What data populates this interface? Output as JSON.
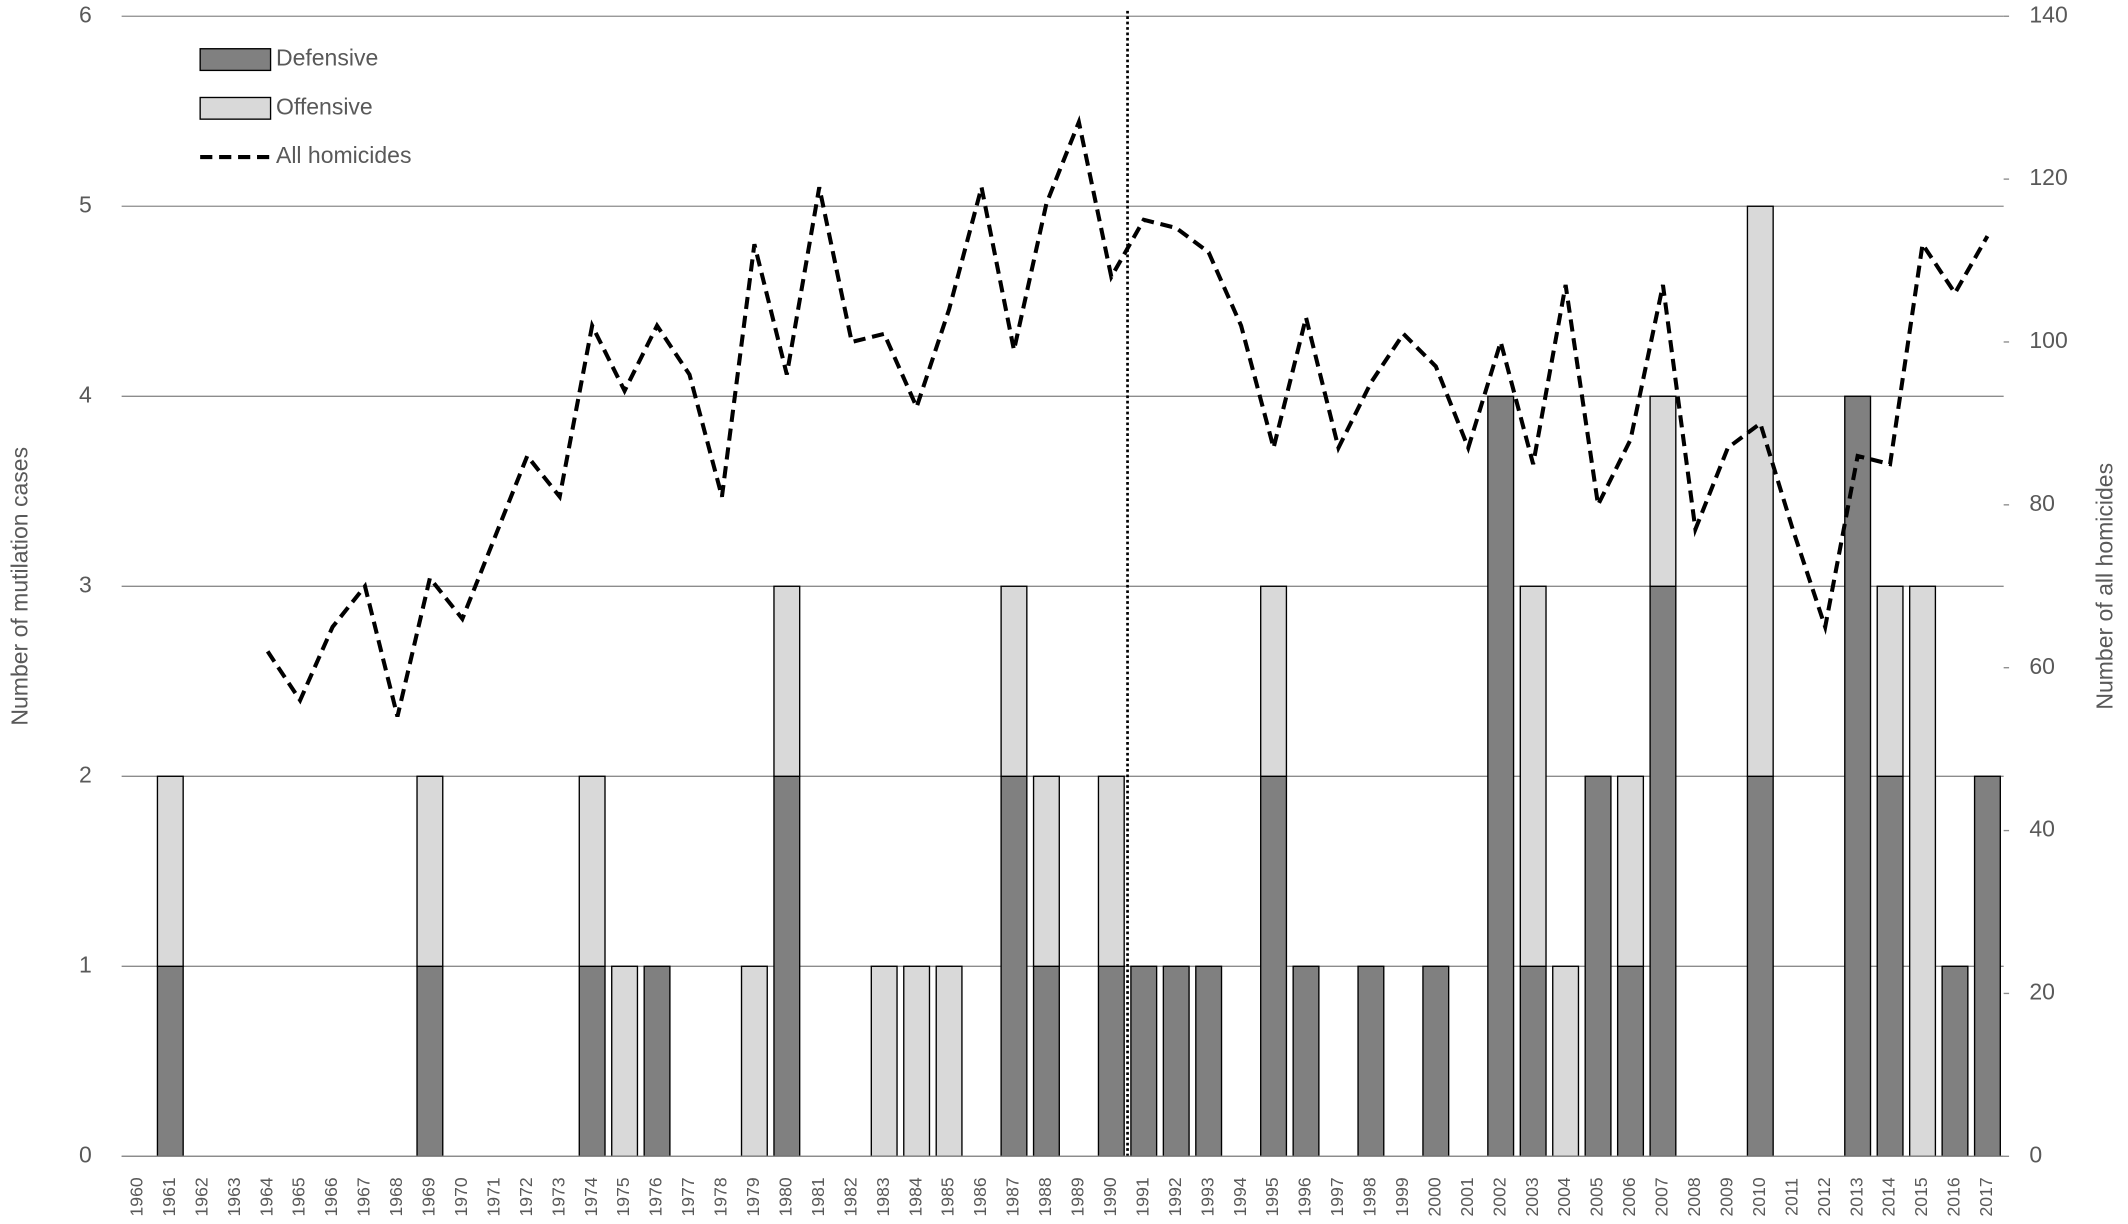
{
  "chart_data": {
    "type": "bar",
    "categories": [
      "1960",
      "1961",
      "1962",
      "1963",
      "1964",
      "1965",
      "1966",
      "1967",
      "1968",
      "1969",
      "1970",
      "1971",
      "1972",
      "1973",
      "1974",
      "1975",
      "1976",
      "1977",
      "1978",
      "1979",
      "1980",
      "1981",
      "1982",
      "1983",
      "1984",
      "1985",
      "1986",
      "1987",
      "1988",
      "1989",
      "1990",
      "1991",
      "1992",
      "1993",
      "1994",
      "1995",
      "1996",
      "1997",
      "1998",
      "1999",
      "2000",
      "2001",
      "2002",
      "2003",
      "2004",
      "2005",
      "2006",
      "2007",
      "2008",
      "2009",
      "2010",
      "2011",
      "2012",
      "2013",
      "2014",
      "2015",
      "2016",
      "2017"
    ],
    "series": [
      {
        "name": "Defensive",
        "type": "bar",
        "color": "#808080",
        "values": [
          0,
          1,
          0,
          0,
          0,
          0,
          0,
          0,
          0,
          1,
          0,
          0,
          0,
          0,
          1,
          0,
          1,
          0,
          0,
          0,
          2,
          0,
          0,
          0,
          0,
          0,
          0,
          2,
          1,
          0,
          1,
          1,
          1,
          1,
          0,
          2,
          1,
          0,
          1,
          0,
          1,
          0,
          4,
          1,
          0,
          2,
          1,
          3,
          0,
          0,
          2,
          0,
          0,
          4,
          2,
          0,
          1,
          2
        ]
      },
      {
        "name": "Offensive",
        "type": "bar",
        "color": "#d9d9d9",
        "values": [
          0,
          1,
          0,
          0,
          0,
          0,
          0,
          0,
          0,
          1,
          0,
          0,
          0,
          0,
          1,
          1,
          0,
          0,
          0,
          1,
          1,
          0,
          0,
          1,
          1,
          1,
          0,
          1,
          1,
          0,
          1,
          0,
          0,
          0,
          0,
          1,
          0,
          0,
          0,
          0,
          0,
          0,
          0,
          2,
          1,
          0,
          1,
          1,
          0,
          0,
          3,
          0,
          0,
          0,
          1,
          3,
          0,
          0
        ]
      },
      {
        "name": "All homicides",
        "type": "line",
        "axis": "y2",
        "color": "#000000",
        "values": [
          null,
          null,
          null,
          null,
          62,
          56,
          65,
          70,
          54,
          71,
          66,
          76,
          86,
          81,
          102,
          94,
          102,
          96,
          81,
          112,
          96,
          119,
          100,
          101,
          92,
          104,
          119,
          99,
          117,
          127,
          108,
          115,
          114,
          111,
          102,
          87,
          103,
          87,
          95,
          101,
          97,
          87,
          100,
          85,
          107,
          80,
          88,
          107,
          77,
          87,
          90,
          77,
          65,
          86,
          85,
          112,
          106,
          113
        ]
      }
    ],
    "ylabel": "Number of mutilation cases",
    "y2label": "Number of all  homicides",
    "ylim": [
      0,
      6
    ],
    "yticks": [
      0,
      1,
      2,
      3,
      4,
      5,
      6
    ],
    "y2lim": [
      0,
      140
    ],
    "y2ticks": [
      0,
      20,
      40,
      60,
      80,
      100,
      120,
      140
    ],
    "grid": true,
    "legend": "top-left"
  }
}
